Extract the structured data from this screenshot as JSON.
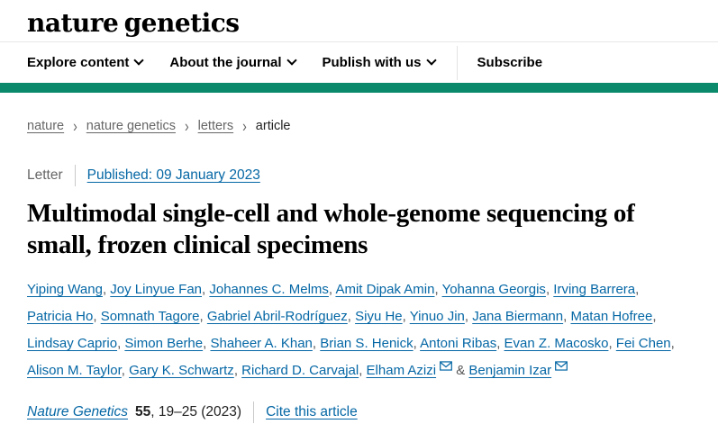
{
  "colors": {
    "accent_green": "#0a8a6b",
    "link_blue": "#0567a5",
    "muted_gray": "#666666",
    "text_dark": "#222222"
  },
  "header": {
    "logo": "nature genetics"
  },
  "nav": {
    "items": [
      {
        "label": "Explore content",
        "chevron": true,
        "divider_before": false
      },
      {
        "label": "About the journal",
        "chevron": true,
        "divider_before": false
      },
      {
        "label": "Publish with us",
        "chevron": true,
        "divider_before": false
      },
      {
        "label": "Subscribe",
        "chevron": false,
        "divider_before": true
      }
    ],
    "chevron_icon": "chevron-down",
    "breadcrumb_separator": "›"
  },
  "breadcrumb": {
    "items": [
      {
        "label": "nature",
        "link": true
      },
      {
        "label": "nature genetics",
        "link": true
      },
      {
        "label": "letters",
        "link": true
      },
      {
        "label": "article",
        "link": false
      }
    ]
  },
  "article": {
    "type_label": "Letter",
    "published": "Published: 09 January 2023",
    "title": "Multimodal single-cell and whole-genome sequencing of small, frozen clinical specimens",
    "author_separator": ", ",
    "last_author_separator": " & ",
    "email_icon": "envelope",
    "authors": [
      {
        "name": "Yiping Wang",
        "email": false
      },
      {
        "name": "Joy Linyue Fan",
        "email": false
      },
      {
        "name": "Johannes C. Melms",
        "email": false
      },
      {
        "name": "Amit Dipak Amin",
        "email": false
      },
      {
        "name": "Yohanna Georgis",
        "email": false
      },
      {
        "name": "Irving Barrera",
        "email": false
      },
      {
        "name": "Patricia Ho",
        "email": false
      },
      {
        "name": "Somnath Tagore",
        "email": false
      },
      {
        "name": "Gabriel Abril-Rodríguez",
        "email": false
      },
      {
        "name": "Siyu He",
        "email": false
      },
      {
        "name": "Yinuo Jin",
        "email": false
      },
      {
        "name": "Jana Biermann",
        "email": false
      },
      {
        "name": "Matan Hofree",
        "email": false
      },
      {
        "name": "Lindsay Caprio",
        "email": false
      },
      {
        "name": "Simon Berhe",
        "email": false
      },
      {
        "name": "Shaheer A. Khan",
        "email": false
      },
      {
        "name": "Brian S. Henick",
        "email": false
      },
      {
        "name": "Antoni Ribas",
        "email": false
      },
      {
        "name": "Evan Z. Macosko",
        "email": false
      },
      {
        "name": "Fei Chen",
        "email": false
      },
      {
        "name": "Alison M. Taylor",
        "email": false
      },
      {
        "name": "Gary K. Schwartz",
        "email": false
      },
      {
        "name": "Richard D. Carvajal",
        "email": false
      },
      {
        "name": "Elham Azizi",
        "email": true
      },
      {
        "name": "Benjamin Izar",
        "email": true
      }
    ]
  },
  "citation": {
    "journal": "Nature Genetics",
    "volume": "55",
    "pages_year": ", 19–25 (2023)",
    "cite_link": "Cite this article"
  }
}
